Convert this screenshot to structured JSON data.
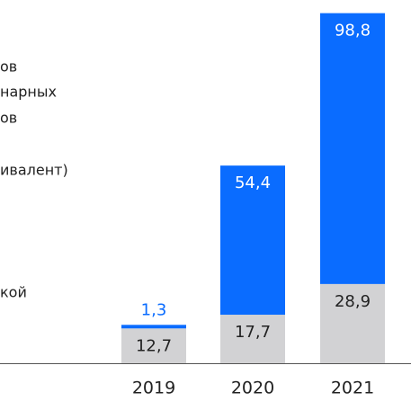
{
  "chart_data": {
    "type": "stacked_bar",
    "side_text": [
      "ов",
      "нарных",
      "ов",
      "ивалент)",
      "кой"
    ],
    "categories": [
      "2019",
      "2020",
      "2021"
    ],
    "series": [
      {
        "color": "#d2d2d4",
        "label_color": "#222222",
        "values": [
          12.7,
          17.7,
          28.9
        ],
        "value_labels": [
          "12,7",
          "17,7",
          "28,9"
        ]
      },
      {
        "color": "#0a6cff",
        "label_color": "#ffffff",
        "values": [
          1.3,
          54.4,
          98.8
        ],
        "value_labels": [
          "1,3",
          "54,4",
          "98,8"
        ]
      }
    ],
    "ylim": [
      0,
      132.5
    ]
  }
}
